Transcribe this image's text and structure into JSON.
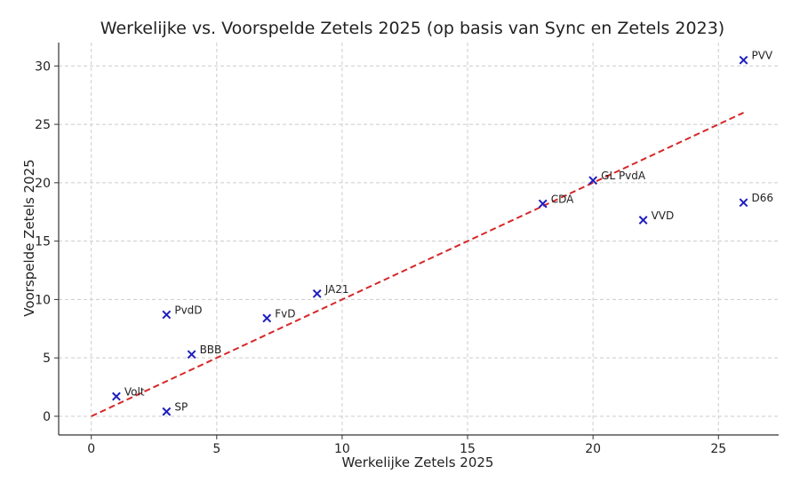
{
  "chart_data": {
    "type": "scatter",
    "title": "Werkelijke vs. Voorspelde Zetels 2025 (op basis van Sync en Zetels 2023)",
    "xlabel": "Werkelijke Zetels 2025",
    "ylabel": "Voorspelde Zetels 2025",
    "xlim": [
      -1.3,
      27.4
    ],
    "ylim": [
      -1.6,
      32.0
    ],
    "xticks": [
      0,
      5,
      10,
      15,
      20,
      25
    ],
    "yticks": [
      0,
      5,
      10,
      15,
      20,
      25,
      30
    ],
    "grid": true,
    "marker": "x",
    "marker_color": "#1f1fbf",
    "reference_line": {
      "from": [
        0,
        0
      ],
      "to": [
        26,
        26
      ],
      "color": "#d62728",
      "style": "dashed"
    },
    "points": [
      {
        "label": "PVV",
        "x": 26,
        "y": 30.5
      },
      {
        "label": "D66",
        "x": 26,
        "y": 18.3
      },
      {
        "label": "GL PvdA",
        "x": 20,
        "y": 20.2
      },
      {
        "label": "VVD",
        "x": 22,
        "y": 16.8
      },
      {
        "label": "CDA",
        "x": 18,
        "y": 18.2
      },
      {
        "label": "JA21",
        "x": 9,
        "y": 10.5
      },
      {
        "label": "FvD",
        "x": 7,
        "y": 8.4
      },
      {
        "label": "PvdD",
        "x": 3,
        "y": 8.7
      },
      {
        "label": "BBB",
        "x": 4,
        "y": 5.3
      },
      {
        "label": "Volt",
        "x": 1,
        "y": 1.7
      },
      {
        "label": "SP",
        "x": 3,
        "y": 0.4
      }
    ]
  }
}
